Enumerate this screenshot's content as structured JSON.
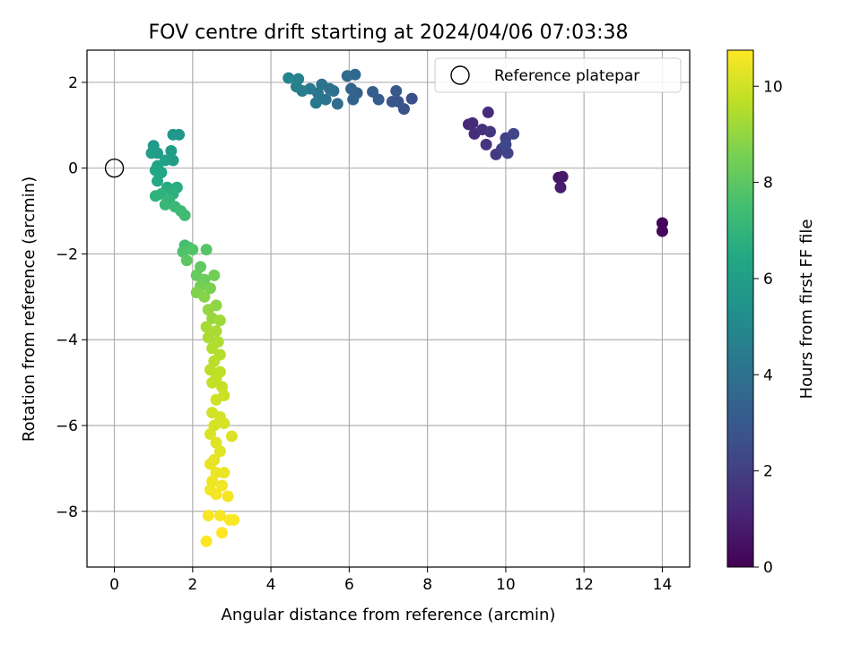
{
  "chart_data": {
    "type": "scatter",
    "title": "FOV centre drift starting at 2024/04/06 07:03:38",
    "xlabel": "Angular distance from reference (arcmin)",
    "ylabel": "Rotation from reference (arcmin)",
    "xlim": [
      -0.7,
      14.7
    ],
    "ylim": [
      -9.3,
      2.75
    ],
    "xticks": [
      0,
      2,
      4,
      6,
      8,
      10,
      12,
      14
    ],
    "yticks": [
      -8,
      -6,
      -4,
      -2,
      0,
      2
    ],
    "grid": true,
    "legend": {
      "position": "top-right",
      "entries": [
        "Reference platepar"
      ]
    },
    "colorbar": {
      "label": "Hours from first FF file",
      "range": [
        0,
        10.75
      ],
      "ticks": [
        0,
        2,
        4,
        6,
        8,
        10
      ],
      "colormap": "viridis"
    },
    "reference_point": {
      "x": 0,
      "y": 0,
      "label": "Reference platepar"
    },
    "series": [
      {
        "note_columns": [
          "x",
          "y",
          "hours"
        ],
        "points": [
          [
            14.0,
            -1.28,
            0.1
          ],
          [
            14.0,
            -1.47,
            0.2
          ],
          [
            11.35,
            -0.22,
            0.6
          ],
          [
            11.45,
            -0.2,
            0.7
          ],
          [
            11.4,
            -0.45,
            0.8
          ],
          [
            9.05,
            1.02,
            1.2
          ],
          [
            9.15,
            1.05,
            1.3
          ],
          [
            9.55,
            1.3,
            1.35
          ],
          [
            9.2,
            0.8,
            1.4
          ],
          [
            9.4,
            0.9,
            1.5
          ],
          [
            9.5,
            0.55,
            1.6
          ],
          [
            9.6,
            0.85,
            1.7
          ],
          [
            9.75,
            0.32,
            1.8
          ],
          [
            9.9,
            0.45,
            1.9
          ],
          [
            10.0,
            0.7,
            2.0
          ],
          [
            10.05,
            0.35,
            2.1
          ],
          [
            10.2,
            0.8,
            2.2
          ],
          [
            10.0,
            0.55,
            2.3
          ],
          [
            7.6,
            1.62,
            2.6
          ],
          [
            7.4,
            1.38,
            2.7
          ],
          [
            7.25,
            1.55,
            2.8
          ],
          [
            7.1,
            1.55,
            2.9
          ],
          [
            7.2,
            1.8,
            3.0
          ],
          [
            6.75,
            1.6,
            3.1
          ],
          [
            6.6,
            1.78,
            3.2
          ],
          [
            6.2,
            1.75,
            3.3
          ],
          [
            6.1,
            1.6,
            3.4
          ],
          [
            6.05,
            1.85,
            3.5
          ],
          [
            6.15,
            2.18,
            3.6
          ],
          [
            5.95,
            2.15,
            3.7
          ],
          [
            5.7,
            1.5,
            3.8
          ],
          [
            5.6,
            1.8,
            3.9
          ],
          [
            5.5,
            1.85,
            4.0
          ],
          [
            5.4,
            1.6,
            4.05
          ],
          [
            5.3,
            1.95,
            4.1
          ],
          [
            5.2,
            1.75,
            4.2
          ],
          [
            5.15,
            1.52,
            4.3
          ],
          [
            5.0,
            1.85,
            4.4
          ],
          [
            4.8,
            1.8,
            4.5
          ],
          [
            4.65,
            1.9,
            4.6
          ],
          [
            4.7,
            2.08,
            4.7
          ],
          [
            4.45,
            2.1,
            4.8
          ],
          [
            1.65,
            0.78,
            5.6
          ],
          [
            1.5,
            0.78,
            5.7
          ],
          [
            1.0,
            0.52,
            5.8
          ],
          [
            1.1,
            0.35,
            5.9
          ],
          [
            0.95,
            0.35,
            6.0
          ],
          [
            1.45,
            0.4,
            5.9
          ],
          [
            1.5,
            0.18,
            6.0
          ],
          [
            1.3,
            0.18,
            6.1
          ],
          [
            1.1,
            0.05,
            6.2
          ],
          [
            1.2,
            -0.1,
            6.3
          ],
          [
            1.05,
            -0.05,
            6.4
          ],
          [
            1.1,
            -0.3,
            6.5
          ],
          [
            1.35,
            -0.45,
            6.6
          ],
          [
            1.6,
            -0.45,
            6.7
          ],
          [
            1.5,
            -0.6,
            6.8
          ],
          [
            1.2,
            -0.6,
            6.9
          ],
          [
            1.05,
            -0.65,
            6.9
          ],
          [
            1.4,
            -0.75,
            7.0
          ],
          [
            1.3,
            -0.85,
            7.1
          ],
          [
            1.55,
            -0.9,
            7.2
          ],
          [
            1.7,
            -1.0,
            7.3
          ],
          [
            1.8,
            -1.1,
            7.4
          ],
          [
            1.8,
            -1.8,
            7.5
          ],
          [
            1.9,
            -1.85,
            7.6
          ],
          [
            1.75,
            -1.95,
            7.7
          ],
          [
            2.0,
            -1.9,
            7.8
          ],
          [
            2.35,
            -1.9,
            7.9
          ],
          [
            1.85,
            -2.15,
            8.0
          ],
          [
            2.2,
            -2.3,
            8.1
          ],
          [
            2.1,
            -2.5,
            8.2
          ],
          [
            2.3,
            -2.6,
            8.3
          ],
          [
            2.55,
            -2.5,
            8.4
          ],
          [
            2.2,
            -2.75,
            8.5
          ],
          [
            2.45,
            -2.8,
            8.6
          ],
          [
            2.1,
            -2.9,
            8.7
          ],
          [
            2.3,
            -3.0,
            8.8
          ],
          [
            2.6,
            -3.2,
            8.9
          ],
          [
            2.4,
            -3.3,
            9.0
          ],
          [
            2.5,
            -3.5,
            9.1
          ],
          [
            2.7,
            -3.55,
            9.2
          ],
          [
            2.35,
            -3.7,
            9.3
          ],
          [
            2.6,
            -3.8,
            9.35
          ],
          [
            2.4,
            -3.95,
            9.4
          ],
          [
            2.65,
            -4.05,
            9.45
          ],
          [
            2.5,
            -4.2,
            9.5
          ],
          [
            2.7,
            -4.35,
            9.55
          ],
          [
            2.55,
            -4.5,
            9.6
          ],
          [
            2.45,
            -4.7,
            9.65
          ],
          [
            2.7,
            -4.75,
            9.7
          ],
          [
            2.6,
            -4.9,
            9.75
          ],
          [
            2.5,
            -5.0,
            9.8
          ],
          [
            2.75,
            -5.1,
            9.85
          ],
          [
            2.8,
            -5.3,
            9.9
          ],
          [
            2.6,
            -5.4,
            9.95
          ],
          [
            2.5,
            -5.7,
            10.0
          ],
          [
            2.7,
            -5.8,
            10.05
          ],
          [
            2.55,
            -6.0,
            10.1
          ],
          [
            2.8,
            -5.95,
            10.1
          ],
          [
            2.45,
            -6.2,
            10.15
          ],
          [
            3.0,
            -6.25,
            10.2
          ],
          [
            2.6,
            -6.4,
            10.25
          ],
          [
            2.7,
            -6.6,
            10.3
          ],
          [
            2.55,
            -6.8,
            10.35
          ],
          [
            2.45,
            -6.9,
            10.4
          ],
          [
            2.6,
            -7.1,
            10.45
          ],
          [
            2.8,
            -7.1,
            10.45
          ],
          [
            2.5,
            -7.3,
            10.5
          ],
          [
            2.75,
            -7.4,
            10.55
          ],
          [
            2.45,
            -7.5,
            10.55
          ],
          [
            2.9,
            -7.65,
            10.6
          ],
          [
            2.6,
            -7.6,
            10.6
          ],
          [
            2.4,
            -8.1,
            10.65
          ],
          [
            2.7,
            -8.1,
            10.65
          ],
          [
            2.95,
            -8.2,
            10.7
          ],
          [
            3.05,
            -8.2,
            10.7
          ],
          [
            2.75,
            -8.5,
            10.75
          ],
          [
            2.35,
            -8.7,
            10.75
          ]
        ]
      }
    ]
  }
}
